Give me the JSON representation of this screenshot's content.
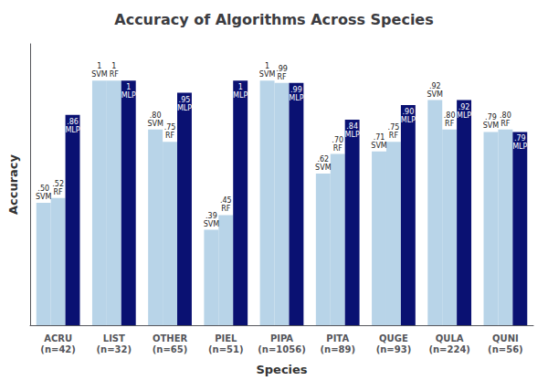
{
  "chart_data": {
    "type": "bar",
    "title": "Accuracy of Algorithms Across Species",
    "xlabel": "Species",
    "ylabel": "Accuracy",
    "categories": [
      "ACRU\n(n=42)",
      "LIST\n(n=32)",
      "OTHER\n(n=65)",
      "PIEL\n(n=51)",
      "PIPA\n(n=1056)",
      "PITA\n(n=89)",
      "QUGE\n(n=93)",
      "QULA\n(n=224)",
      "QUNI\n(n=56)"
    ],
    "series": [
      {
        "name": "SVM",
        "color": "#B8D4E8",
        "values": [
          0.5,
          1.0,
          0.8,
          0.39,
          1.0,
          0.62,
          0.71,
          0.92,
          0.79
        ],
        "value_labels": [
          ".50\nSVM",
          "1\nSVM",
          ".80\nSVM",
          ".39\nSVM",
          "1\nSVM",
          ".62\nSVM",
          ".71\nSVM",
          ".92\nSVM",
          ".79\nSVM"
        ]
      },
      {
        "name": "RF",
        "color": "#B8D4E8",
        "values": [
          0.52,
          1.0,
          0.75,
          0.45,
          0.99,
          0.7,
          0.75,
          0.8,
          0.8
        ],
        "value_labels": [
          ".52\nRF",
          "1\nRF",
          ".75\nRF",
          ".45\nRF",
          ".99\nRF",
          ".70\nRF",
          ".75\nRF",
          ".80\nRF",
          ".80\nRF"
        ]
      },
      {
        "name": "MLP",
        "color": "#0A1172",
        "values": [
          0.86,
          1.0,
          0.95,
          1.0,
          0.99,
          0.84,
          0.9,
          0.92,
          0.79
        ],
        "value_labels": [
          ".86\nMLP",
          "1\nMLP",
          ".95\nMLP",
          "1\nMLP",
          ".99\nMLP",
          ".84\nMLP",
          ".90\nMLP",
          ".92\nMLP",
          ".79\nMLP"
        ]
      }
    ],
    "ylim": [
      0,
      1.15
    ],
    "yticks": [],
    "tick_labels": "x",
    "grid": false,
    "data_labels": true
  }
}
